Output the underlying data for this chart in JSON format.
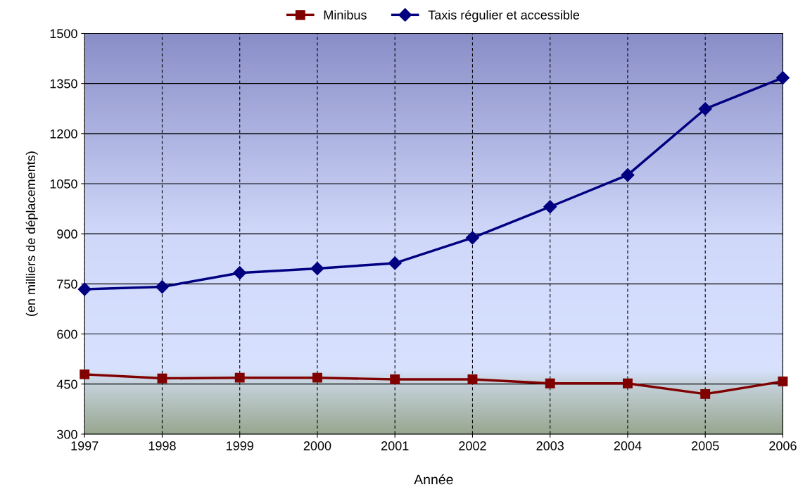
{
  "chart_data": {
    "type": "line",
    "xlabel": "Année",
    "ylabel": "(en milliers de déplacements)",
    "x": [
      1997,
      1998,
      1999,
      2000,
      2001,
      2002,
      2003,
      2004,
      2005,
      2006
    ],
    "series": [
      {
        "name": "Minibus",
        "color": "#800000",
        "marker": "square",
        "values": [
          479,
          467,
          469,
          469,
          464,
          464,
          452,
          452,
          420,
          458
        ]
      },
      {
        "name": "Taxis régulier et accessible",
        "color": "#000080",
        "marker": "diamond",
        "values": [
          734,
          741,
          783,
          796,
          812,
          888,
          981,
          1076,
          1274,
          1367
        ]
      }
    ],
    "xlim": [
      1997,
      2006
    ],
    "xticks": [
      1997,
      1998,
      1999,
      2000,
      2001,
      2002,
      2003,
      2004,
      2005,
      2006
    ],
    "ylim": [
      300,
      1500
    ],
    "yticks": [
      300,
      450,
      600,
      750,
      900,
      1050,
      1200,
      1350,
      1500
    ],
    "grid": true,
    "legend": "top",
    "line_style": "solid"
  }
}
